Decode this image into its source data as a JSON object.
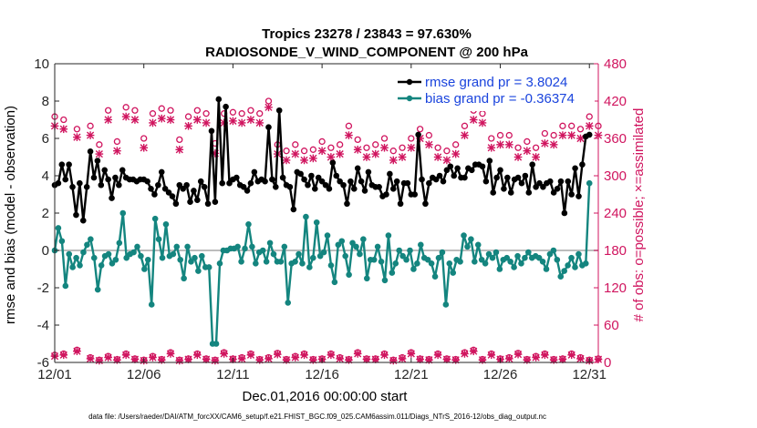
{
  "chart_data": {
    "type": "line",
    "title": "Tropics 23278 / 23843 = 97.630%",
    "subtitle": "RADIOSONDE_V_WIND_COMPONENT @ 200 hPa",
    "xlabel": "Dec.01,2016 00:00:00 start",
    "ylabel_left": "rmse and bias (model - observation)",
    "ylabel_right": "# of obs: o=possible; ×=assimilated",
    "xlim": [
      0,
      30.5
    ],
    "ylim_left": [
      -6,
      10
    ],
    "ylim_right": [
      0,
      480
    ],
    "x_tick_labels": [
      "12/01",
      "12/06",
      "12/11",
      "12/16",
      "12/21",
      "12/26",
      "12/31"
    ],
    "x_tick_values": [
      0,
      5,
      10,
      15,
      20,
      25,
      30
    ],
    "y_left_ticks": [
      -6,
      -4,
      -2,
      0,
      2,
      4,
      6,
      8,
      10
    ],
    "y_right_ticks": [
      0,
      60,
      120,
      180,
      240,
      300,
      360,
      420,
      480
    ],
    "zero_line": 0,
    "legend": [
      {
        "label": "rmse grand pr = 3.8024",
        "color": "#000000",
        "marker": "circle"
      },
      {
        "label": "bias grand pr = -0.36374",
        "color": "#14857f",
        "marker": "circle"
      }
    ],
    "colors": {
      "rmse": "#000000",
      "bias": "#14857f",
      "obs": "#d0155f",
      "zero": "#bdbdbd",
      "axes_right": "#d0155f"
    },
    "series": [
      {
        "name": "rmse",
        "axis": "left",
        "color": "#000000",
        "values": [
          3.5,
          3.6,
          4.6,
          3.8,
          4.6,
          3.4,
          1.9,
          3.6,
          1.6,
          3.4,
          5.3,
          3.9,
          4.8,
          3.5,
          4.3,
          3.8,
          2.8,
          3.9,
          3.5,
          4.3,
          3.9,
          3.8,
          3.8,
          3.7,
          3.8,
          3.8,
          3.7,
          3.3,
          3.0,
          3.5,
          4.2,
          3.3,
          3.1,
          2.9,
          2.5,
          3.5,
          3.3,
          3.5,
          2.6,
          3.2,
          2.7,
          3.7,
          3.4,
          2.5,
          6.4,
          2.6,
          8.1,
          3.6,
          7.7,
          3.6,
          3.8,
          3.9,
          3.5,
          3.4,
          3.2,
          3.6,
          4.2,
          3.7,
          3.8,
          3.7,
          6.6,
          3.8,
          3.4,
          7.5,
          3.9,
          3.5,
          3.4,
          2.2,
          4.2,
          4.1,
          3.8,
          3.5,
          4.0,
          3.3,
          3.9,
          3.7,
          3.5,
          3.3,
          4.7,
          4.0,
          3.7,
          3.5,
          2.5,
          3.7,
          3.3,
          4.4,
          3.7,
          3.2,
          4.2,
          3.5,
          3.4,
          3.4,
          2.9,
          3.0,
          4.1,
          3.3,
          3.7,
          2.5,
          3.6,
          3.6,
          3.0,
          3.0,
          6.2,
          3.8,
          2.5,
          3.6,
          3.9,
          3.8,
          4.0,
          3.7,
          4.3,
          4.5,
          4.0,
          4.4,
          3.9,
          3.9,
          4.4,
          4.3,
          4.6,
          4.6,
          4.5,
          3.7,
          4.8,
          3.1,
          3.9,
          4.3,
          3.3,
          3.9,
          3.1,
          3.8,
          3.9,
          3.6,
          4.0,
          3.1,
          4.6,
          3.4,
          3.6,
          3.4,
          3.6,
          3.7,
          3.1,
          3.3,
          3.7,
          2.0,
          3.7,
          3.0,
          4.4,
          2.9,
          4.6,
          6.1,
          6.2
        ]
      },
      {
        "name": "bias",
        "axis": "left",
        "color": "#14857f",
        "values": [
          0.0,
          1.2,
          0.5,
          -1.9,
          -0.2,
          -0.9,
          -0.4,
          -0.8,
          -0.1,
          0.3,
          0.6,
          -0.4,
          -2.1,
          -0.8,
          -0.3,
          -0.2,
          -0.7,
          -0.5,
          0.4,
          2.0,
          -0.4,
          -0.2,
          -0.1,
          0.2,
          -0.3,
          -1.0,
          -0.5,
          -2.9,
          1.7,
          0.6,
          -0.4,
          1.4,
          -0.3,
          -0.2,
          0.2,
          -0.5,
          -1.5,
          0.2,
          -0.6,
          -0.4,
          -1.1,
          -0.3,
          -0.9,
          -0.9,
          -5.0,
          -5.0,
          -0.7,
          0.0,
          0.0,
          0.1,
          0.1,
          0.2,
          -0.6,
          0.1,
          1.4,
          0.2,
          -0.7,
          -0.1,
          0.0,
          -0.6,
          0.4,
          -0.2,
          -0.6,
          -0.6,
          0.2,
          -2.8,
          -0.7,
          -0.6,
          -0.2,
          -0.7,
          1.8,
          -0.9,
          -0.4,
          1.5,
          -0.3,
          -0.1,
          0.8,
          -0.8,
          -1.7,
          0.3,
          0.5,
          -0.3,
          -1.3,
          0.4,
          0.2,
          -0.2,
          0.6,
          -1.5,
          -0.5,
          -0.5,
          0.2,
          -0.6,
          -1.6,
          0.8,
          -1.2,
          -0.7,
          0.0,
          -0.3,
          -0.5,
          0.0,
          -1.0,
          -0.7,
          0.3,
          -0.4,
          -0.5,
          -0.7,
          -1.4,
          -0.4,
          -0.1,
          -2.9,
          -0.7,
          -1.2,
          -0.5,
          -0.6,
          0.8,
          0.2,
          0.6,
          -0.6,
          0.3,
          -0.5,
          -0.7,
          -0.2,
          -0.4,
          -0.1,
          -1.0,
          -0.5,
          -0.4,
          -0.6,
          -0.9,
          -0.3,
          -0.7,
          -0.4,
          -0.1,
          -0.4,
          -0.3,
          -0.4,
          -0.6,
          -1.0,
          -0.2,
          0.0,
          -0.5,
          -1.4,
          -1.1,
          -0.8,
          -0.4,
          -0.9,
          -0.2,
          -0.8,
          -0.7,
          3.6
        ]
      },
      {
        "name": "obs possible (o)",
        "axis": "right",
        "color": "#d0155f",
        "x": [
          0.0,
          0.5,
          1.25,
          2.0,
          2.5,
          3.0,
          3.5,
          4.0,
          4.5,
          5.0,
          5.5,
          6.0,
          6.5,
          7.0,
          7.5,
          8.0,
          8.5,
          9.0,
          9.5,
          10.0,
          10.5,
          11.0,
          11.5,
          12.0,
          12.5,
          13.0,
          13.5,
          14.0,
          14.5,
          15.0,
          15.5,
          16.0,
          16.5,
          17.0,
          17.5,
          18.0,
          18.5,
          19.0,
          19.5,
          20.0,
          20.5,
          21.0,
          21.5,
          22.0,
          22.5,
          23.0,
          23.5,
          24.0,
          24.5,
          25.0,
          25.5,
          26.0,
          26.5,
          27.0,
          27.5,
          28.0,
          28.5,
          29.0,
          29.5,
          30.0,
          30.5
        ],
        "values": [
          395,
          390,
          375,
          380,
          350,
          405,
          355,
          410,
          405,
          360,
          400,
          408,
          405,
          358,
          395,
          405,
          400,
          352,
          400,
          402,
          400,
          405,
          400,
          420,
          350,
          340,
          350,
          340,
          342,
          355,
          345,
          350,
          380,
          358,
          345,
          350,
          360,
          340,
          345,
          360,
          375,
          365,
          345,
          340,
          350,
          380,
          405,
          400,
          360,
          365,
          365,
          345,
          355,
          345,
          368,
          365,
          380,
          380,
          375,
          395,
          380
        ]
      },
      {
        "name": "obs assimilated (×)",
        "axis": "right",
        "color": "#d0155f",
        "x": [
          0.0,
          0.5,
          1.25,
          2.0,
          2.5,
          3.0,
          3.5,
          4.0,
          4.5,
          5.0,
          5.5,
          6.0,
          6.5,
          7.0,
          7.5,
          8.0,
          8.5,
          9.0,
          9.5,
          10.0,
          10.5,
          11.0,
          11.5,
          12.0,
          12.5,
          13.0,
          13.5,
          14.0,
          14.5,
          15.0,
          15.5,
          16.0,
          16.5,
          17.0,
          17.5,
          18.0,
          18.5,
          19.0,
          19.5,
          20.0,
          20.5,
          21.0,
          21.5,
          22.0,
          22.5,
          23.0,
          23.5,
          24.0,
          24.5,
          25.0,
          25.5,
          26.0,
          26.5,
          27.0,
          27.5,
          28.0,
          28.5,
          29.0,
          29.5,
          30.0,
          30.5
        ],
        "values": [
          380,
          375,
          362,
          365,
          335,
          390,
          340,
          395,
          390,
          345,
          385,
          392,
          390,
          342,
          380,
          390,
          385,
          336,
          385,
          388,
          385,
          390,
          385,
          410,
          335,
          325,
          335,
          325,
          328,
          340,
          330,
          335,
          365,
          342,
          330,
          335,
          345,
          325,
          330,
          345,
          360,
          350,
          330,
          325,
          335,
          365,
          390,
          385,
          345,
          350,
          350,
          330,
          340,
          330,
          352,
          350,
          365,
          365,
          360,
          380,
          365
        ]
      },
      {
        "name": "obs low (o)",
        "axis": "right",
        "color": "#d0155f",
        "x": [
          0.0,
          0.5,
          1.25,
          2.0,
          2.5,
          3.0,
          3.5,
          4.0,
          4.5,
          5.0,
          5.5,
          6.0,
          6.5,
          7.0,
          7.5,
          8.0,
          8.5,
          9.0,
          9.5,
          10.0,
          10.5,
          11.0,
          11.5,
          12.0,
          12.5,
          13.0,
          13.5,
          14.0,
          14.5,
          15.0,
          15.5,
          16.0,
          16.5,
          17.0,
          17.5,
          18.0,
          18.5,
          19.0,
          19.5,
          20.0,
          20.5,
          21.0,
          21.5,
          22.0,
          22.5,
          23.0,
          23.5,
          24.0,
          24.5,
          25.0,
          25.5,
          26.0,
          26.5,
          27.0,
          27.5,
          28.0,
          28.5,
          29.0,
          29.5,
          30.0,
          30.5
        ],
        "values": [
          12,
          14,
          20,
          8,
          4,
          10,
          5,
          14,
          6,
          4,
          10,
          5,
          16,
          4,
          6,
          14,
          6,
          4,
          16,
          6,
          8,
          14,
          5,
          8,
          15,
          5,
          10,
          14,
          5,
          6,
          14,
          8,
          5,
          16,
          6,
          6,
          14,
          4,
          8,
          16,
          6,
          5,
          14,
          6,
          5,
          16,
          20,
          5,
          14,
          6,
          8,
          15,
          5,
          10,
          14,
          5,
          6,
          14,
          8,
          4,
          6
        ]
      },
      {
        "name": "obs low assimilated (×)",
        "axis": "right",
        "color": "#d0155f",
        "x": [
          0.0,
          0.5,
          1.25,
          2.0,
          2.5,
          3.0,
          3.5,
          4.0,
          4.5,
          5.0,
          5.5,
          6.0,
          6.5,
          7.0,
          7.5,
          8.0,
          8.5,
          9.0,
          9.5,
          10.0,
          10.5,
          11.0,
          11.5,
          12.0,
          12.5,
          13.0,
          13.5,
          14.0,
          14.5,
          15.0,
          15.5,
          16.0,
          16.5,
          17.0,
          17.5,
          18.0,
          18.5,
          19.0,
          19.5,
          20.0,
          20.5,
          21.0,
          21.5,
          22.0,
          22.5,
          23.0,
          23.5,
          24.0,
          24.5,
          25.0,
          25.5,
          26.0,
          26.5,
          27.0,
          27.5,
          28.0,
          28.5,
          29.0,
          29.5,
          30.0,
          30.5
        ],
        "values": [
          10,
          12,
          18,
          6,
          3,
          8,
          4,
          12,
          5,
          3,
          8,
          4,
          14,
          3,
          5,
          12,
          5,
          3,
          14,
          5,
          6,
          12,
          4,
          6,
          13,
          4,
          8,
          12,
          4,
          5,
          12,
          6,
          4,
          14,
          5,
          5,
          12,
          3,
          6,
          14,
          5,
          4,
          12,
          5,
          4,
          14,
          18,
          4,
          12,
          5,
          6,
          13,
          4,
          8,
          12,
          4,
          5,
          12,
          6,
          3,
          5
        ]
      }
    ]
  },
  "footer": "data file: /Users/raeder/DAI/ATM_forcXX/CAM6_setup/f.e21.FHIST_BGC.f09_025.CAM6assim.011/Diags_NTrS_2016-12/obs_diag_output.nc"
}
